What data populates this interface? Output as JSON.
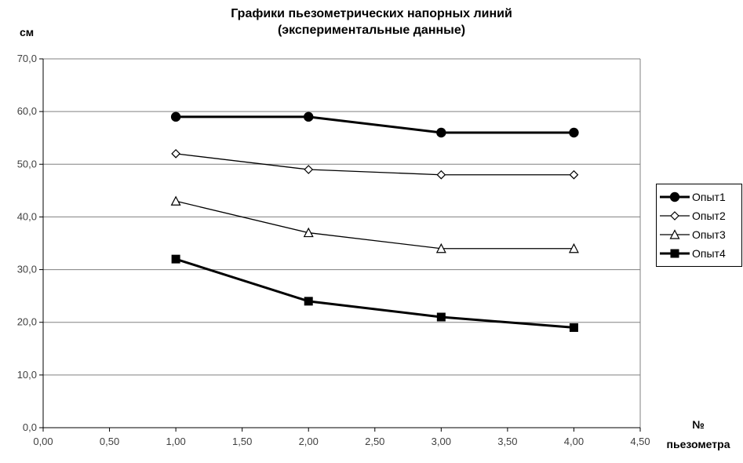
{
  "chart_data": {
    "type": "line",
    "title": "Графики пьезометрических напорных линий (экспериментальные данные)",
    "title_line1": "Графики пьезометрических напорных линий",
    "title_line2": "(экспериментальные данные)",
    "ylabel": "см",
    "xlabel": "№ пьезометра",
    "xlabel_line1": "№",
    "xlabel_line2": "пьезометра",
    "x": [
      1.0,
      2.0,
      3.0,
      4.0
    ],
    "series": [
      {
        "name": "Опыт1",
        "values": [
          59,
          59,
          56,
          56
        ],
        "marker": "filled-circle",
        "line_width": 3
      },
      {
        "name": "Опыт2",
        "values": [
          52,
          49,
          48,
          48
        ],
        "marker": "open-diamond",
        "line_width": 1.3
      },
      {
        "name": "Опыт3",
        "values": [
          43,
          37,
          34,
          34
        ],
        "marker": "open-triangle",
        "line_width": 1.3
      },
      {
        "name": "Опыт4",
        "values": [
          32,
          24,
          21,
          19
        ],
        "marker": "filled-square",
        "line_width": 3
      }
    ],
    "xlim": [
      0,
      4.5
    ],
    "ylim": [
      0,
      70
    ],
    "x_ticks": [
      {
        "value": 0.0,
        "label": "0,00"
      },
      {
        "value": 0.5,
        "label": "0,50"
      },
      {
        "value": 1.0,
        "label": "1,00"
      },
      {
        "value": 1.5,
        "label": "1,50"
      },
      {
        "value": 2.0,
        "label": "2,00"
      },
      {
        "value": 2.5,
        "label": "2,50"
      },
      {
        "value": 3.0,
        "label": "3,00"
      },
      {
        "value": 3.5,
        "label": "3,50"
      },
      {
        "value": 4.0,
        "label": "4,00"
      },
      {
        "value": 4.5,
        "label": "4,50"
      }
    ],
    "y_ticks": [
      {
        "value": 0,
        "label": "0,0"
      },
      {
        "value": 10,
        "label": "10,0"
      },
      {
        "value": 20,
        "label": "20,0"
      },
      {
        "value": 30,
        "label": "30,0"
      },
      {
        "value": 40,
        "label": "40,0"
      },
      {
        "value": 50,
        "label": "50,0"
      },
      {
        "value": 60,
        "label": "60,0"
      },
      {
        "value": 70,
        "label": "70,0"
      }
    ],
    "grid": true,
    "legend_position": "right",
    "colors": {
      "series": "#000000",
      "grid": "#808080",
      "axis": "#000000",
      "tick_text": "#404040",
      "marker_open_fill": "#ffffff",
      "background": "#ffffff",
      "legend_border": "#000000"
    }
  }
}
